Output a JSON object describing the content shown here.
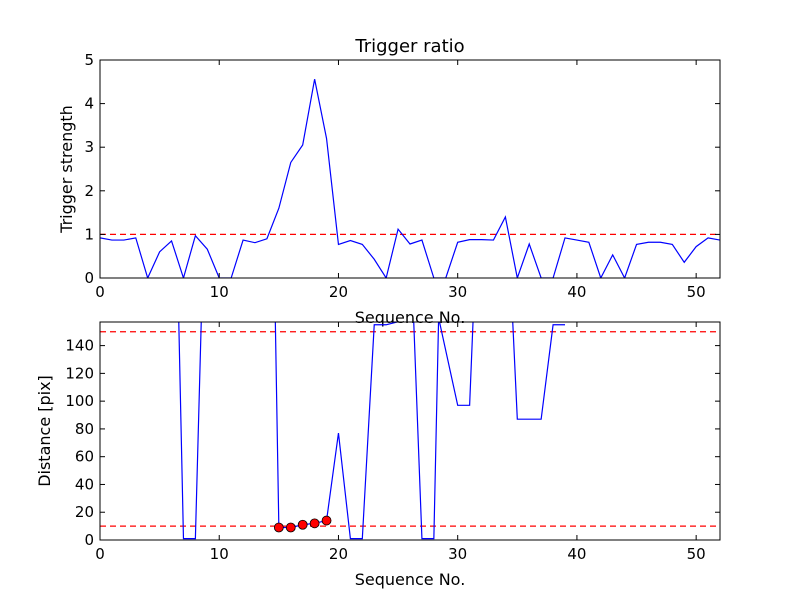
{
  "chart_data": [
    {
      "type": "line",
      "title": "Trigger ratio",
      "xlabel": "Sequence No.",
      "ylabel": "Trigger strength",
      "xlim": [
        0,
        52
      ],
      "ylim": [
        0,
        5
      ],
      "xticks": [
        "0",
        "10",
        "20",
        "30",
        "40",
        "50"
      ],
      "yticks": [
        "0",
        "1",
        "2",
        "3",
        "4",
        "5"
      ],
      "grid": false,
      "threshold_lines": [
        1
      ],
      "line_color": "#0000ff",
      "threshold_color": "#ff0000",
      "series": [
        {
          "x": [
            0,
            1,
            2,
            3,
            4,
            5,
            6,
            7,
            8,
            9,
            10,
            11,
            12,
            13,
            14,
            15,
            16,
            17,
            18,
            19,
            20,
            21,
            22,
            23,
            24,
            25,
            26,
            27,
            28,
            29,
            30,
            31,
            32,
            33,
            34,
            35,
            36,
            37,
            38,
            39,
            40,
            41,
            42,
            43,
            44,
            45,
            46,
            47,
            48,
            49,
            50,
            51,
            52
          ],
          "values": [
            0.92,
            0.87,
            0.87,
            0.92,
            0,
            0.6,
            0.85,
            0,
            0.97,
            0.66,
            0,
            0,
            0.87,
            0.81,
            0.9,
            1.6,
            2.65,
            3.05,
            4.56,
            3.2,
            0.77,
            0.86,
            0.77,
            0.43,
            0,
            1.12,
            0.78,
            0.87,
            0,
            0,
            0.82,
            0.88,
            0.88,
            0.87,
            1.4,
            0,
            0.78,
            0,
            0,
            0.92,
            0.87,
            0.82,
            0,
            0.53,
            0,
            0.77,
            0.82,
            0.82,
            0.77,
            0.36,
            0.72,
            0.92,
            0.87
          ]
        }
      ]
    },
    {
      "type": "line",
      "title": "",
      "xlabel": "Sequence No.",
      "ylabel": "Distance [pix]",
      "xlim": [
        0,
        52
      ],
      "ylim": [
        0,
        157
      ],
      "xticks": [
        "0",
        "10",
        "20",
        "30",
        "40",
        "50"
      ],
      "yticks": [
        "0",
        "20",
        "40",
        "60",
        "80",
        "100",
        "120",
        "140"
      ],
      "grid": false,
      "threshold_lines": [
        10,
        150
      ],
      "line_color": "#0000ff",
      "threshold_color": "#ff0000",
      "marker_color": "#ff0000",
      "series": [
        {
          "x": [
            6.6,
            7,
            8,
            8.5,
            14.7,
            15,
            16,
            17,
            18,
            19,
            20,
            21,
            22,
            23,
            24,
            26.3,
            27,
            28,
            28.4,
            30,
            31,
            31.3,
            34.6,
            35,
            36,
            37,
            38,
            39
          ],
          "values": [
            160,
            1,
            1,
            160,
            160,
            9,
            9,
            11,
            12,
            14,
            77,
            1,
            1,
            155,
            155,
            160,
            1,
            1,
            160,
            97,
            97,
            160,
            160,
            87,
            87,
            87,
            155,
            155
          ]
        }
      ],
      "markers": {
        "x": [
          15,
          16,
          17,
          18,
          19
        ],
        "values": [
          9,
          9,
          11,
          12,
          14
        ]
      }
    }
  ]
}
